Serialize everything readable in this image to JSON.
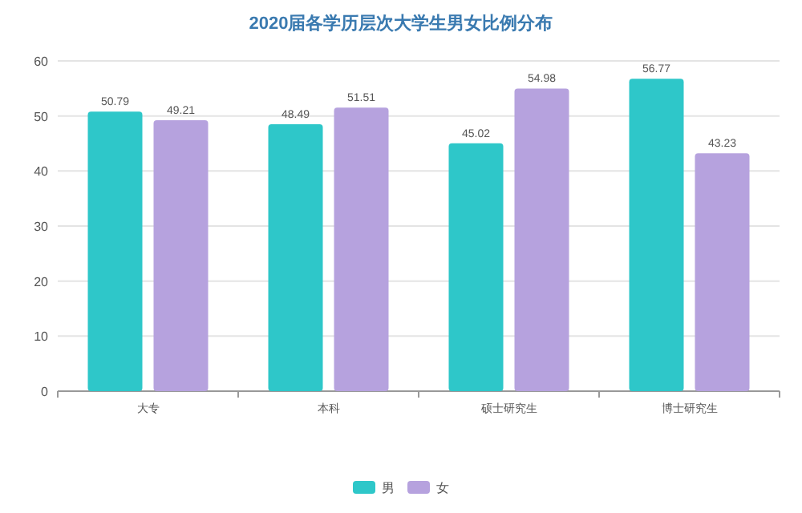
{
  "chart_data": {
    "type": "bar",
    "title": "2020届各学历层次大学生男女比例分布",
    "categories": [
      "大专",
      "本科",
      "硕士研究生",
      "博士研究生"
    ],
    "series": [
      {
        "name": "男",
        "color": "#2ec7c9",
        "values": [
          50.79,
          48.49,
          45.02,
          56.77
        ]
      },
      {
        "name": "女",
        "color": "#b6a2de",
        "values": [
          49.21,
          51.51,
          54.98,
          43.23
        ]
      }
    ],
    "ylim": [
      0,
      60
    ],
    "yticks": [
      0,
      10,
      20,
      30,
      40,
      50,
      60
    ],
    "grid": "y",
    "legend": "bottom",
    "data_labels": true
  }
}
